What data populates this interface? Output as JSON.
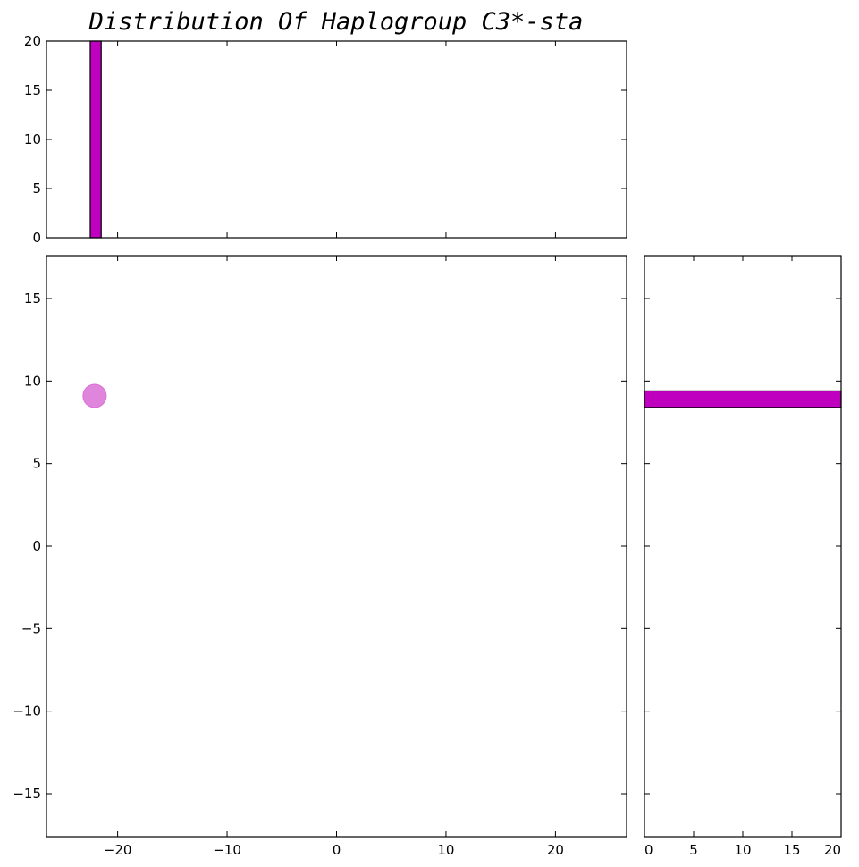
{
  "chart_data": {
    "type": "scatter",
    "title": "Distribution Of Haplogroup C3*-sta",
    "color": "#bf00bf",
    "point_color": "#da70d6",
    "scatter": {
      "points": [
        {
          "x": -22.1,
          "y": 9.1
        }
      ],
      "xlim": [
        -26.5,
        26.5
      ],
      "ylim": [
        -17.6,
        17.6
      ],
      "xticks": [
        -20,
        -10,
        0,
        10,
        20
      ],
      "yticks": [
        -15,
        -10,
        -5,
        0,
        5,
        10,
        15
      ],
      "xtick_labels": [
        "−20",
        "−10",
        "0",
        "10",
        "20"
      ],
      "ytick_labels": [
        "−15",
        "−10",
        "−5",
        "0",
        "5",
        "10",
        "15"
      ]
    },
    "top_histogram": {
      "bins": [
        {
          "x0": -22.5,
          "x1": -21.5,
          "count": 20
        }
      ],
      "ylim": [
        0,
        20
      ],
      "yticks": [
        0,
        5,
        10,
        15,
        20
      ],
      "ytick_labels": [
        "0",
        "5",
        "10",
        "15",
        "20"
      ]
    },
    "right_histogram": {
      "bins": [
        {
          "y0": 8.4,
          "y1": 9.4,
          "count": 20
        }
      ],
      "xlim": [
        0,
        20
      ],
      "xticks": [
        0,
        5,
        10,
        15,
        20
      ],
      "xtick_labels": [
        "0",
        "5",
        "10",
        "15",
        "20"
      ]
    }
  }
}
